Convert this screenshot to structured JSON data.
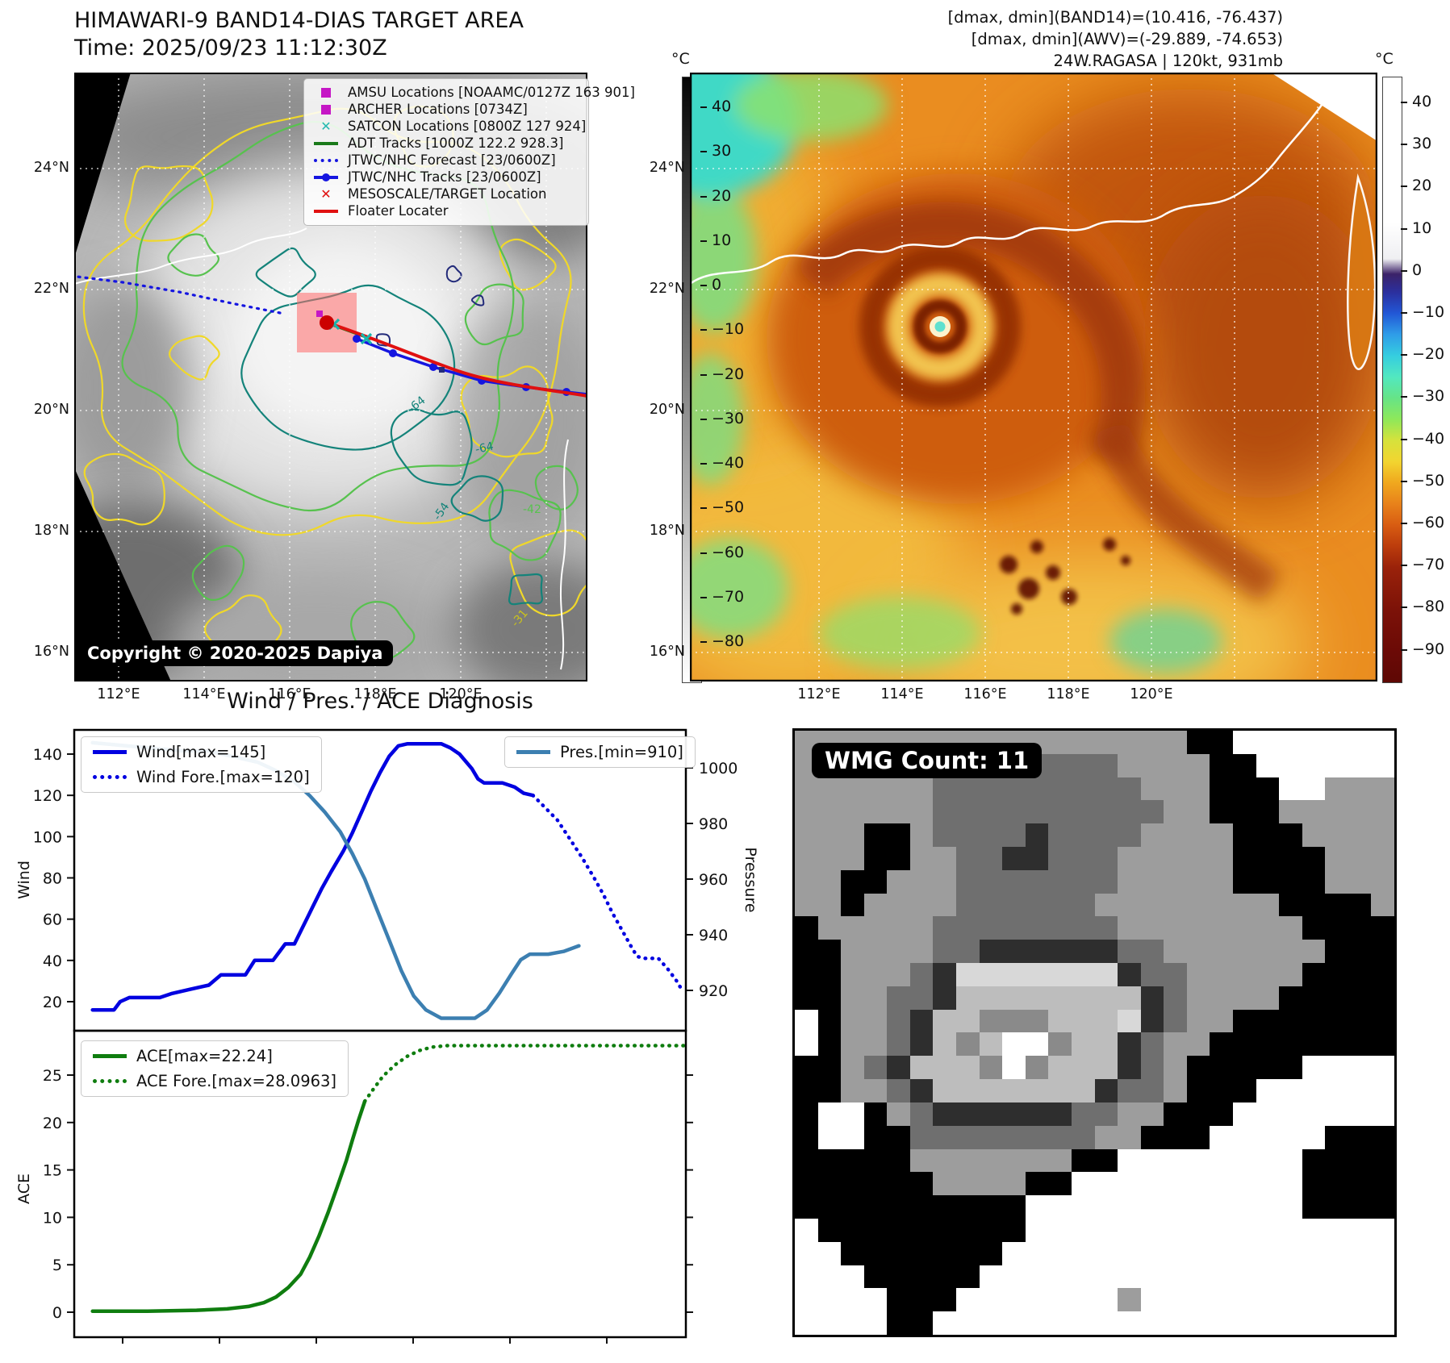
{
  "left_panel": {
    "title_line1": "HIMAWARI-9 BAND14-DIAS TARGET AREA",
    "title_line2": "Time: 2025/09/23 11:12:30Z",
    "copyright": "Copyright © 2020-2025 Dapiya",
    "lat_labels": [
      "24°N",
      "22°N",
      "20°N",
      "18°N",
      "16°N"
    ],
    "lon_labels": [
      "112°E",
      "114°E",
      "116°E",
      "118°E",
      "120°E"
    ],
    "colorbar": {
      "unit": "°C",
      "ticks": [
        40,
        30,
        20,
        10,
        0,
        -10,
        -20,
        -30,
        -40,
        -50,
        -60,
        -70,
        -80
      ]
    },
    "contour_labels": [
      "-64",
      "-64",
      "-54",
      "-42",
      "-31"
    ],
    "legend_items": [
      {
        "label": "AMSU Locations [NOAAMC/0127Z 163 901]",
        "marker": "square",
        "color": "#c517c5"
      },
      {
        "label": "ARCHER Locations [0734Z]",
        "marker": "square",
        "color": "#c517c5"
      },
      {
        "label": "SATCON Locations [0800Z 127 924]",
        "marker": "x",
        "color": "#25b8b0"
      },
      {
        "label": "ADT Tracks [1000Z 122.2 928.3]",
        "marker": "line",
        "color": "#1a7a1a"
      },
      {
        "label": "JTWC/NHC Forecast [23/0600Z]",
        "marker": "dotted",
        "color": "#1515e0"
      },
      {
        "label": "JTWC/NHC Tracks [23/0600Z]",
        "marker": "line-dot",
        "color": "#1515e0"
      },
      {
        "label": "MESOSCALE/TARGET Location",
        "marker": "x",
        "color": "#e01010"
      },
      {
        "label": "Floater Locater",
        "marker": "line",
        "color": "#e01010"
      }
    ]
  },
  "right_panel": {
    "header_line1": "[dmax, dmin](BAND14)=(10.416, -76.437)",
    "header_line2": "[dmax, dmin](AWV)=(-29.889, -74.653)",
    "header_line3": "24W.RAGASA | 120kt, 931mb",
    "lat_labels": [
      "24°N",
      "22°N",
      "20°N",
      "18°N",
      "16°N"
    ],
    "lon_labels": [
      "112°E",
      "114°E",
      "116°E",
      "118°E",
      "120°E"
    ],
    "colorbar": {
      "unit": "°C",
      "ticks": [
        40,
        30,
        20,
        10,
        0,
        -10,
        -20,
        -30,
        -40,
        -50,
        -60,
        -70,
        -80,
        -90
      ]
    }
  },
  "charts": {
    "section_title": "Wind / Pres. / ACE Diagnosis"
  },
  "chart_data": [
    {
      "type": "line",
      "title": "Wind / Pres. / ACE Diagnosis",
      "ylabel": "Wind",
      "y2label": "Pressure",
      "ylim": [
        10,
        151
      ],
      "y2lim": [
        905,
        1014
      ],
      "yticks": [
        140,
        120,
        100,
        80,
        60,
        40,
        20
      ],
      "y2ticks": [
        1000,
        980,
        960,
        940,
        920
      ],
      "xticks": [],
      "grid": false,
      "legend_position": [
        "upper left",
        "upper right"
      ],
      "series": [
        {
          "name": "Wind[max=145]",
          "style": "solid",
          "color": "#0000e0",
          "axis": "left",
          "points": [
            [
              0.03,
              16
            ],
            [
              0.065,
              16
            ],
            [
              0.075,
              20
            ],
            [
              0.09,
              22
            ],
            [
              0.14,
              22
            ],
            [
              0.16,
              24
            ],
            [
              0.19,
              26
            ],
            [
              0.22,
              28
            ],
            [
              0.24,
              33
            ],
            [
              0.28,
              33
            ],
            [
              0.295,
              40
            ],
            [
              0.325,
              40
            ],
            [
              0.335,
              44
            ],
            [
              0.345,
              48
            ],
            [
              0.36,
              48
            ],
            [
              0.375,
              57
            ],
            [
              0.39,
              66
            ],
            [
              0.405,
              75
            ],
            [
              0.42,
              83
            ],
            [
              0.44,
              93
            ],
            [
              0.455,
              102
            ],
            [
              0.47,
              112
            ],
            [
              0.485,
              122
            ],
            [
              0.5,
              131
            ],
            [
              0.515,
              139
            ],
            [
              0.53,
              144
            ],
            [
              0.545,
              145
            ],
            [
              0.6,
              145
            ],
            [
              0.615,
              143
            ],
            [
              0.63,
              140
            ],
            [
              0.65,
              133
            ],
            [
              0.66,
              128
            ],
            [
              0.67,
              126
            ],
            [
              0.7,
              126
            ],
            [
              0.72,
              124
            ],
            [
              0.735,
              121
            ],
            [
              0.75,
              120
            ]
          ]
        },
        {
          "name": "Wind Fore.[max=120]",
          "style": "dotted",
          "color": "#0000e0",
          "axis": "left",
          "points": [
            [
              0.75,
              120
            ],
            [
              0.77,
              114
            ],
            [
              0.79,
              108
            ],
            [
              0.81,
              99
            ],
            [
              0.83,
              90
            ],
            [
              0.85,
              80
            ],
            [
              0.865,
              72
            ],
            [
              0.88,
              63
            ],
            [
              0.895,
              55
            ],
            [
              0.91,
              47
            ],
            [
              0.92,
              42
            ],
            [
              0.93,
              41
            ],
            [
              0.955,
              41
            ],
            [
              0.97,
              36
            ],
            [
              0.985,
              30
            ],
            [
              0.995,
              25
            ]
          ]
        },
        {
          "name": "Pres.[min=910]",
          "style": "solid",
          "color": "#3c7fb1",
          "axis": "right",
          "points": [
            [
              0.03,
              1009
            ],
            [
              0.08,
              1008
            ],
            [
              0.13,
              1007
            ],
            [
              0.18,
              1006
            ],
            [
              0.22,
              1006
            ],
            [
              0.26,
              1004
            ],
            [
              0.3,
              1002
            ],
            [
              0.33,
              999
            ],
            [
              0.36,
              995
            ],
            [
              0.385,
              990
            ],
            [
              0.41,
              984
            ],
            [
              0.435,
              977
            ],
            [
              0.455,
              969
            ],
            [
              0.475,
              960
            ],
            [
              0.495,
              949
            ],
            [
              0.515,
              938
            ],
            [
              0.535,
              927
            ],
            [
              0.555,
              918
            ],
            [
              0.575,
              913
            ],
            [
              0.6,
              910
            ],
            [
              0.655,
              910
            ],
            [
              0.675,
              913
            ],
            [
              0.695,
              919
            ],
            [
              0.715,
              926
            ],
            [
              0.73,
              931
            ],
            [
              0.745,
              933
            ],
            [
              0.775,
              933
            ],
            [
              0.8,
              934
            ],
            [
              0.825,
              936
            ]
          ]
        }
      ]
    },
    {
      "type": "line",
      "ylabel": "ACE",
      "ylim": [
        -2,
        29.5
      ],
      "yticks": [
        25,
        20,
        15,
        10,
        5,
        0
      ],
      "xticks": [],
      "grid": false,
      "legend_position": "upper left",
      "series": [
        {
          "name": "ACE[max=22.24]",
          "style": "solid",
          "color": "#0f7d0f",
          "axis": "left",
          "points": [
            [
              0.03,
              0.1
            ],
            [
              0.12,
              0.1
            ],
            [
              0.2,
              0.2
            ],
            [
              0.25,
              0.35
            ],
            [
              0.285,
              0.6
            ],
            [
              0.31,
              1.0
            ],
            [
              0.33,
              1.6
            ],
            [
              0.35,
              2.6
            ],
            [
              0.37,
              4.0
            ],
            [
              0.385,
              5.8
            ],
            [
              0.4,
              8.0
            ],
            [
              0.415,
              10.5
            ],
            [
              0.43,
              13.2
            ],
            [
              0.445,
              16.0
            ],
            [
              0.455,
              18.2
            ],
            [
              0.465,
              20.3
            ],
            [
              0.475,
              22.24
            ]
          ]
        },
        {
          "name": "ACE Fore.[max=28.0963]",
          "style": "dotted",
          "color": "#0f7d0f",
          "axis": "left",
          "points": [
            [
              0.475,
              22.24
            ],
            [
              0.49,
              23.6
            ],
            [
              0.505,
              24.9
            ],
            [
              0.525,
              26.1
            ],
            [
              0.545,
              27.0
            ],
            [
              0.565,
              27.6
            ],
            [
              0.585,
              27.95
            ],
            [
              0.61,
              28.1
            ],
            [
              0.7,
              28.1
            ],
            [
              0.85,
              28.1
            ],
            [
              1.0,
              28.1
            ]
          ]
        }
      ]
    }
  ],
  "wmg": {
    "label": "WMG Count: 11",
    "palette": {
      "b": "#000000",
      "k": "#2e2e2e",
      "d": "#6f6f6f",
      "g": "#9d9d9d",
      "m": "#8a8a8a",
      "l": "#bdbdbd",
      "e": "#d8d8d8",
      "w": "#ffffff"
    },
    "grid": [
      "gggggggggggggggggbbwwwwwww",
      "gggggggdddddddggggbbwwwwww",
      "ggggggdddddddddgggbbbwwggg",
      "ggggggddddddddddggbbbggggg",
      "gggbbgddddkddddggggbbbgggg",
      "gggbbggddkkdddgggggbbbbggg",
      "ggbbgggdddddddgggggbbbbggg",
      "ggbggggddddddggggggggbbbbg",
      "bgggggddddddddggggggggbbbb",
      "bbggggddkkkkkkddgggggggbbb",
      "bbgggdkeeeeeeekddgggggbbbb",
      "bbggddkllllllllkdggggbbbbb",
      "wbggdkllmmmlllekdggbbbbbbb",
      "wbggdklmlwwmllkdggbbbbbbbb",
      "bbgdklllmwmlllkdgbbbbbwwww",
      "bbggdklllllllkddgbbbwwwwww",
      "bwwbgdkkkkkkddggbbbwwwwwww",
      "bwwbbddddddddggbbbwwwwwbbb",
      "bbbbbgggggggbbwwwwwwwwbbbb",
      "bbbbbbggggbbwwwwwwwwwwbbbb",
      "bbbbbbbbbbwwwwwwwwwwwwbbbb",
      "wbbbbbbbbbwwwwwwwwwwwwwwww",
      "wwbbbbbbbwwwwwwwwwwwwwwwww",
      "wwwbbbbbwwwwwwwwwwwwwwwwww",
      "wwwwbbbwwwwwwwgwwwwwwwwwww",
      "wwwwbbwwwwwwwwwwwwwwwwwwww"
    ]
  },
  "colors": {
    "wind_line": "#0000e0",
    "pressure_line": "#3c7fb1",
    "ace_line": "#0f7d0f",
    "contour_yellow": "#f0d829",
    "contour_green": "#57c24e",
    "contour_teal": "#14837a",
    "contour_navy": "#232b7a",
    "track_red": "#e01010",
    "track_blue": "#1515e0",
    "adt_green": "#1a7a1a",
    "target_fill": "#ff6a6a"
  }
}
